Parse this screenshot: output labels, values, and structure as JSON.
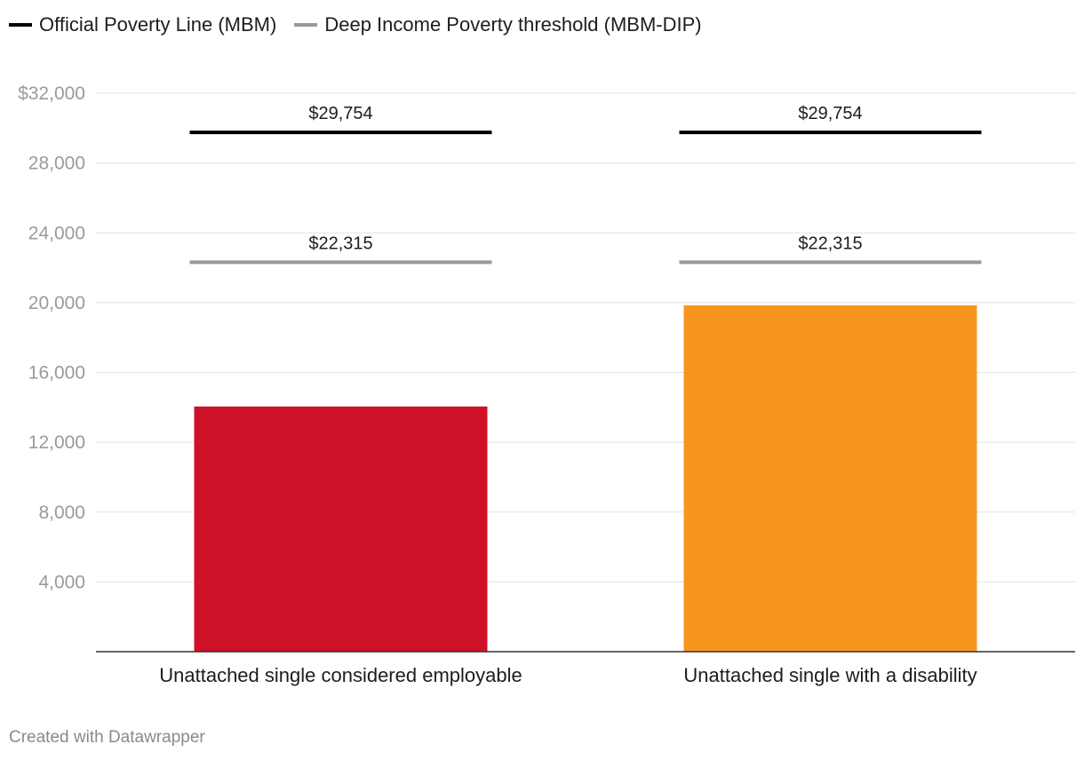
{
  "legend": {
    "items": [
      {
        "label": "Official Poverty Line (MBM)",
        "color": "#000000"
      },
      {
        "label": "Deep Income Poverty threshold (MBM-DIP)",
        "color": "#999999"
      }
    ]
  },
  "chart_data": {
    "type": "bar",
    "categories": [
      "Unattached single considered employable",
      "Unattached single with a disability"
    ],
    "values": [
      14050,
      19850
    ],
    "bar_colors": [
      "#cf1128",
      "#f7961f"
    ],
    "ylim": [
      0,
      32000
    ],
    "y_ticks": [
      4000,
      8000,
      12000,
      16000,
      20000,
      24000,
      28000,
      32000
    ],
    "y_tick_labels": [
      "4,000",
      "8,000",
      "12,000",
      "16,000",
      "20,000",
      "24,000",
      "28,000",
      "$32,000"
    ],
    "reference_lines": [
      {
        "name": "Official Poverty Line (MBM)",
        "value": 29754,
        "label": "$29,754",
        "color": "#000000"
      },
      {
        "name": "Deep Income Poverty threshold (MBM-DIP)",
        "value": 22315,
        "label": "$22,315",
        "color": "#999999"
      }
    ],
    "grid": true
  },
  "footer": {
    "text": "Created with Datawrapper"
  }
}
